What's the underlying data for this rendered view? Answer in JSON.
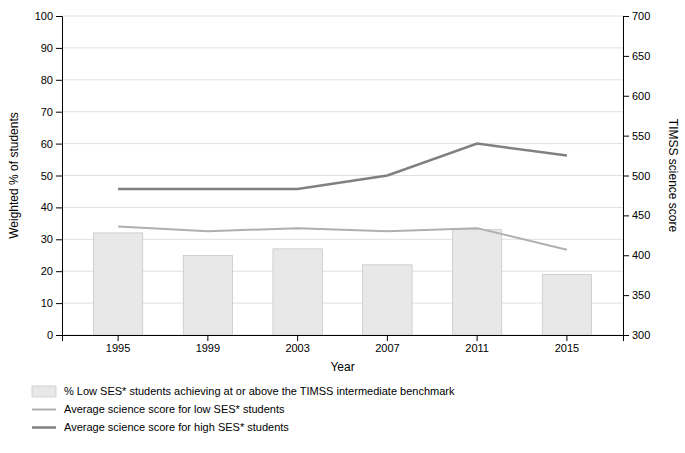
{
  "chart_data": {
    "type": "bar",
    "xlabel": "Year",
    "ylabel": "Weighted % of students",
    "y2label": "TIMSS science score",
    "categories": [
      "1995",
      "1999",
      "2003",
      "2007",
      "2011",
      "2015"
    ],
    "series": [
      {
        "name": "% Low SES* students achieving at or above the TIMSS intermediate benchmark",
        "type": "bar",
        "color": "#e8e8e8",
        "values": [
          32,
          25,
          27,
          22,
          33,
          19
        ]
      },
      {
        "name": "Average science score for low SES* students",
        "type": "line",
        "axis": "y2",
        "color": "#b0b0b0",
        "values": [
          436,
          430,
          434,
          430,
          434,
          407
        ]
      },
      {
        "name": "Average science score for high SES* students",
        "type": "line",
        "axis": "y2",
        "color": "#808080",
        "values": [
          483,
          483,
          483,
          500,
          540,
          525
        ]
      }
    ],
    "ylim": [
      0,
      100
    ],
    "yticks": [
      0,
      10,
      20,
      30,
      40,
      50,
      60,
      70,
      80,
      90,
      100
    ],
    "y2lim": [
      300,
      700
    ],
    "y2ticks": [
      300,
      350,
      400,
      450,
      500,
      550,
      600,
      650,
      700
    ],
    "grid": true,
    "legend": "bottom"
  }
}
